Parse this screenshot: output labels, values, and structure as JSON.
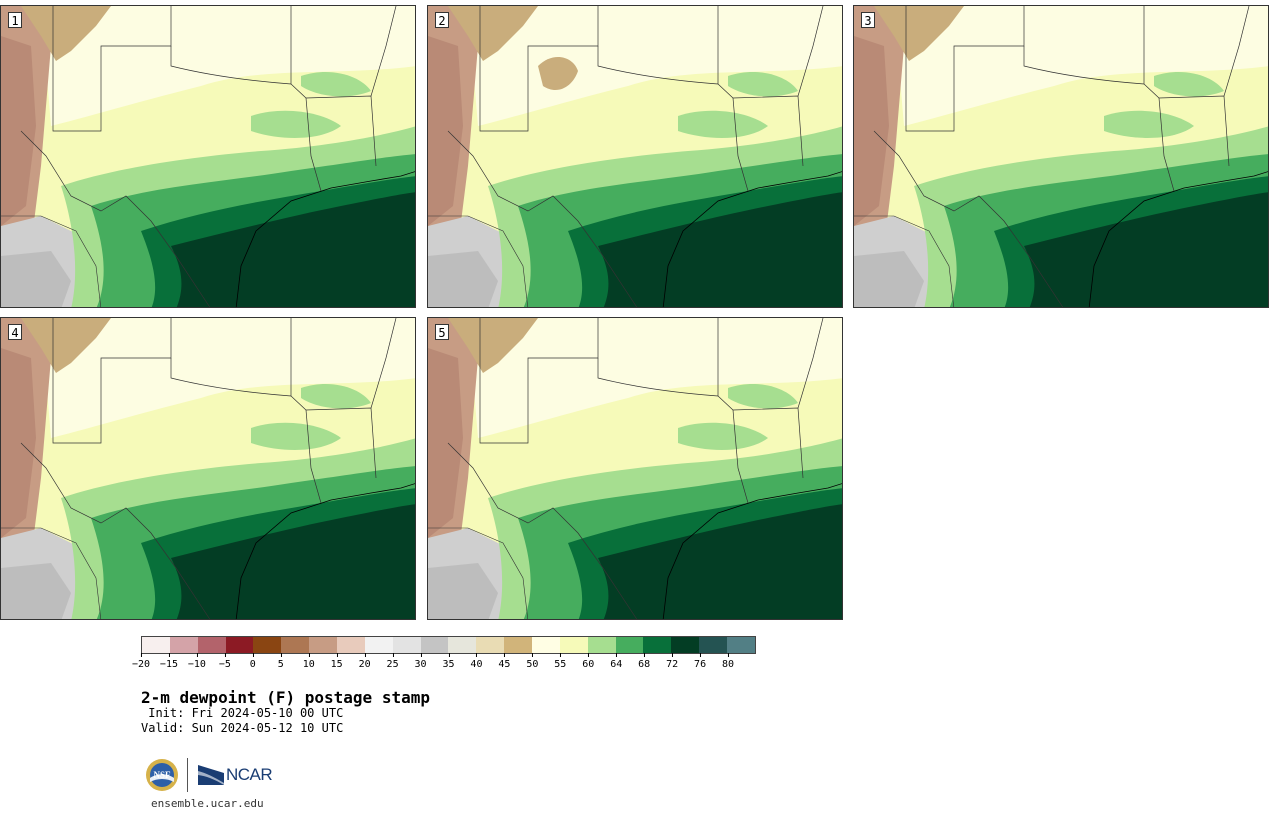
{
  "panels": [
    {
      "label": "1"
    },
    {
      "label": "2"
    },
    {
      "label": "3"
    },
    {
      "label": "4"
    },
    {
      "label": "5"
    }
  ],
  "colorbar": {
    "colors": [
      "#f7efee",
      "#d4a3a8",
      "#b3636b",
      "#8c1a24",
      "#8a4512",
      "#ad7753",
      "#c79c84",
      "#e8cbbc",
      "#f2f2f2",
      "#e3e3e3",
      "#c4c4c4",
      "#e6e6dc",
      "#e9dcb4",
      "#d1b47a",
      "#fffee4",
      "#f6fab9",
      "#a6de90",
      "#46ad5e",
      "#08703a",
      "#033d24",
      "#245352",
      "#527f85"
    ],
    "ticks": [
      "−20",
      "−15",
      "−10",
      "−5",
      "0",
      "5",
      "10",
      "15",
      "20",
      "25",
      "30",
      "35",
      "40",
      "45",
      "50",
      "55",
      "60",
      "64",
      "68",
      "72",
      "76",
      "80"
    ]
  },
  "title": "2-m dewpoint (F) postage stamp",
  "init": " Init: Fri 2024-05-10 00 UTC",
  "valid": "Valid: Sun 2024-05-12 10 UTC",
  "logos": {
    "nsf": "NSF",
    "ncar": "NCAR"
  },
  "site": "ensemble.ucar.edu"
}
